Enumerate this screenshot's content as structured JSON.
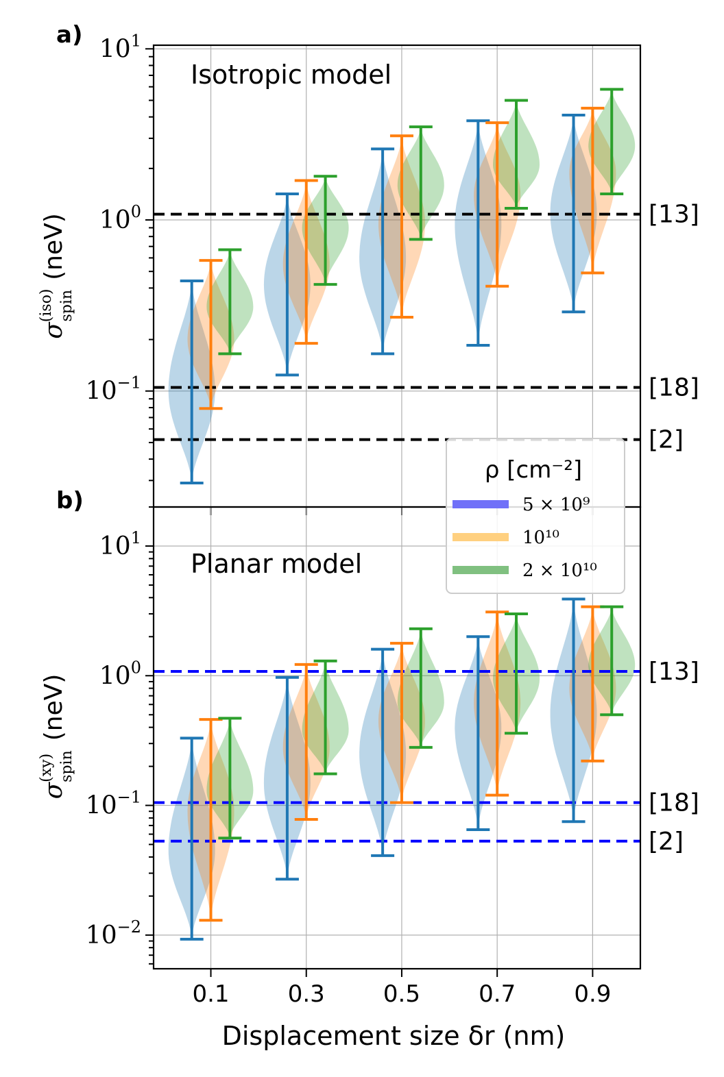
{
  "chart_data": [
    {
      "panel_label": "a)",
      "type": "violin",
      "title": "Isotropic model",
      "yscale": "log",
      "ylim": [
        0.021,
        10.5
      ],
      "ylabel_symbol": "σ",
      "ylabel_sup": "(iso)",
      "ylabel_sub": "spin",
      "ylabel_unit": "(neV)",
      "yticks": [
        {
          "value": 0.1,
          "base": "10",
          "exp": "−1"
        },
        {
          "value": 1,
          "base": "10",
          "exp": "0"
        },
        {
          "value": 10,
          "base": "10",
          "exp": "1"
        }
      ],
      "reference_lines": [
        {
          "value": 1.08,
          "label": "[13]",
          "color": "#000000"
        },
        {
          "value": 0.105,
          "label": "[18]",
          "color": "#000000"
        },
        {
          "value": 0.052,
          "label": "[2]",
          "color": "#000000"
        }
      ],
      "series": [
        {
          "name": "5×10^9",
          "color": "#1f77b4",
          "offset": -0.04,
          "min": [
            0.029,
            0.124,
            0.165,
            0.185,
            0.29
          ],
          "max": [
            0.44,
            1.42,
            2.6,
            3.8,
            4.1
          ],
          "peak": [
            0.1,
            0.42,
            0.6,
            0.95,
            1.1
          ]
        },
        {
          "name": "10^10",
          "color": "#ff7f0e",
          "offset": 0.0,
          "min": [
            0.079,
            0.19,
            0.27,
            0.41,
            0.49
          ],
          "max": [
            0.58,
            1.7,
            3.1,
            3.7,
            4.5
          ],
          "peak": [
            0.2,
            0.55,
            0.95,
            1.4,
            1.9
          ]
        },
        {
          "name": "2×10^10",
          "color": "#2ca02c",
          "offset": 0.04,
          "min": [
            0.165,
            0.42,
            0.77,
            1.17,
            1.42
          ],
          "max": [
            0.67,
            1.8,
            3.5,
            5.0,
            5.8
          ],
          "peak": [
            0.31,
            0.9,
            1.6,
            2.1,
            2.7
          ]
        }
      ]
    },
    {
      "panel_label": "b)",
      "type": "violin",
      "title": "Planar model",
      "yscale": "log",
      "ylim": [
        0.0055,
        20
      ],
      "ylabel_symbol": "σ",
      "ylabel_sup": "(xy)",
      "ylabel_sub": "spin",
      "ylabel_unit": "(neV)",
      "yticks": [
        {
          "value": 0.01,
          "base": "10",
          "exp": "−2"
        },
        {
          "value": 0.1,
          "base": "10",
          "exp": "−1"
        },
        {
          "value": 1,
          "base": "10",
          "exp": "0"
        },
        {
          "value": 10,
          "base": "10",
          "exp": "1"
        }
      ],
      "reference_lines": [
        {
          "value": 1.08,
          "label": "[13]",
          "color": "#0000ff"
        },
        {
          "value": 0.105,
          "label": "[18]",
          "color": "#0000ff"
        },
        {
          "value": 0.053,
          "label": "[2]",
          "color": "#0000ff"
        }
      ],
      "series": [
        {
          "name": "5×10^9",
          "color": "#1f77b4",
          "offset": -0.04,
          "min": [
            0.0093,
            0.027,
            0.041,
            0.065,
            0.075
          ],
          "max": [
            0.33,
            0.97,
            1.6,
            2.0,
            3.9
          ],
          "peak": [
            0.045,
            0.15,
            0.25,
            0.4,
            0.5
          ]
        },
        {
          "name": "10^10",
          "color": "#ff7f0e",
          "offset": 0.0,
          "min": [
            0.013,
            0.078,
            0.105,
            0.12,
            0.22
          ],
          "max": [
            0.46,
            1.22,
            1.78,
            3.1,
            3.4
          ],
          "peak": [
            0.09,
            0.28,
            0.45,
            0.62,
            0.8
          ]
        },
        {
          "name": "2×10^10",
          "color": "#2ca02c",
          "offset": 0.04,
          "min": [
            0.056,
            0.175,
            0.28,
            0.36,
            0.5
          ],
          "max": [
            0.47,
            1.3,
            2.3,
            3.0,
            3.4
          ],
          "peak": [
            0.13,
            0.38,
            0.62,
            0.95,
            1.2
          ]
        }
      ]
    }
  ],
  "xaxis": {
    "label": "Displacement size δr (nm)",
    "categories": [
      0.1,
      0.3,
      0.5,
      0.7,
      0.9
    ],
    "tick_labels": [
      "0.1",
      "0.3",
      "0.5",
      "0.7",
      "0.9"
    ],
    "xlim": [
      -0.02,
      1.0
    ]
  },
  "legend": {
    "title": "ρ [cm⁻²]",
    "location": "upper-right of panel b",
    "entries": [
      {
        "label": "5 × 10⁹",
        "color": "#7070f8"
      },
      {
        "label": "10¹⁰",
        "color": "#ffd080"
      },
      {
        "label": "2 × 10¹⁰",
        "color": "#80c080"
      }
    ]
  }
}
